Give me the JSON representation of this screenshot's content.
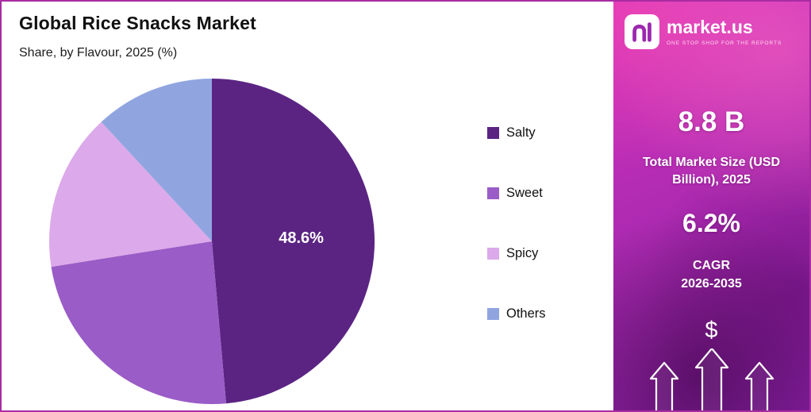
{
  "chart": {
    "title": "Global Rice Snacks Market",
    "subtitle": "Share, by Flavour, 2025 (%)"
  },
  "chart_data": {
    "type": "pie",
    "title": "Global Rice Snacks Market",
    "subtitle": "Share, by Flavour, 2025 (%)",
    "categories": [
      "Salty",
      "Sweet",
      "Spicy",
      "Others"
    ],
    "values": [
      48.6,
      23.9,
      15.6,
      11.9
    ],
    "colors": [
      "#5B2483",
      "#9A5CC6",
      "#DCA9EA",
      "#90A5E0"
    ],
    "data_labels": [
      "48.6%",
      null,
      null,
      null
    ],
    "start_angle_deg": 0,
    "direction": "clockwise",
    "legend_position": "right",
    "highlighted_value_note": "Only the Salty slice shows an in-slice data label (48.6%); other slice values are estimated from arc angles."
  },
  "legend": {
    "items": [
      {
        "label": "Salty",
        "color": "#5B2483"
      },
      {
        "label": "Sweet",
        "color": "#9A5CC6"
      },
      {
        "label": "Spicy",
        "color": "#DCA9EA"
      },
      {
        "label": "Others",
        "color": "#90A5E0"
      }
    ]
  },
  "sidebar": {
    "brand": {
      "name": "market.us",
      "tagline": "ONE STOP SHOP FOR THE REPORTS"
    },
    "market_size_value": "8.8 B",
    "market_size_label": "Total Market Size (USD Billion), 2025",
    "cagr_value": "6.2%",
    "cagr_label": "CAGR",
    "cagr_period": "2026-2035",
    "dollar_symbol": "$",
    "colors": {
      "gradient_start": "#D633C0",
      "gradient_end": "#8D22A8",
      "text": "#FFFFFF"
    }
  }
}
